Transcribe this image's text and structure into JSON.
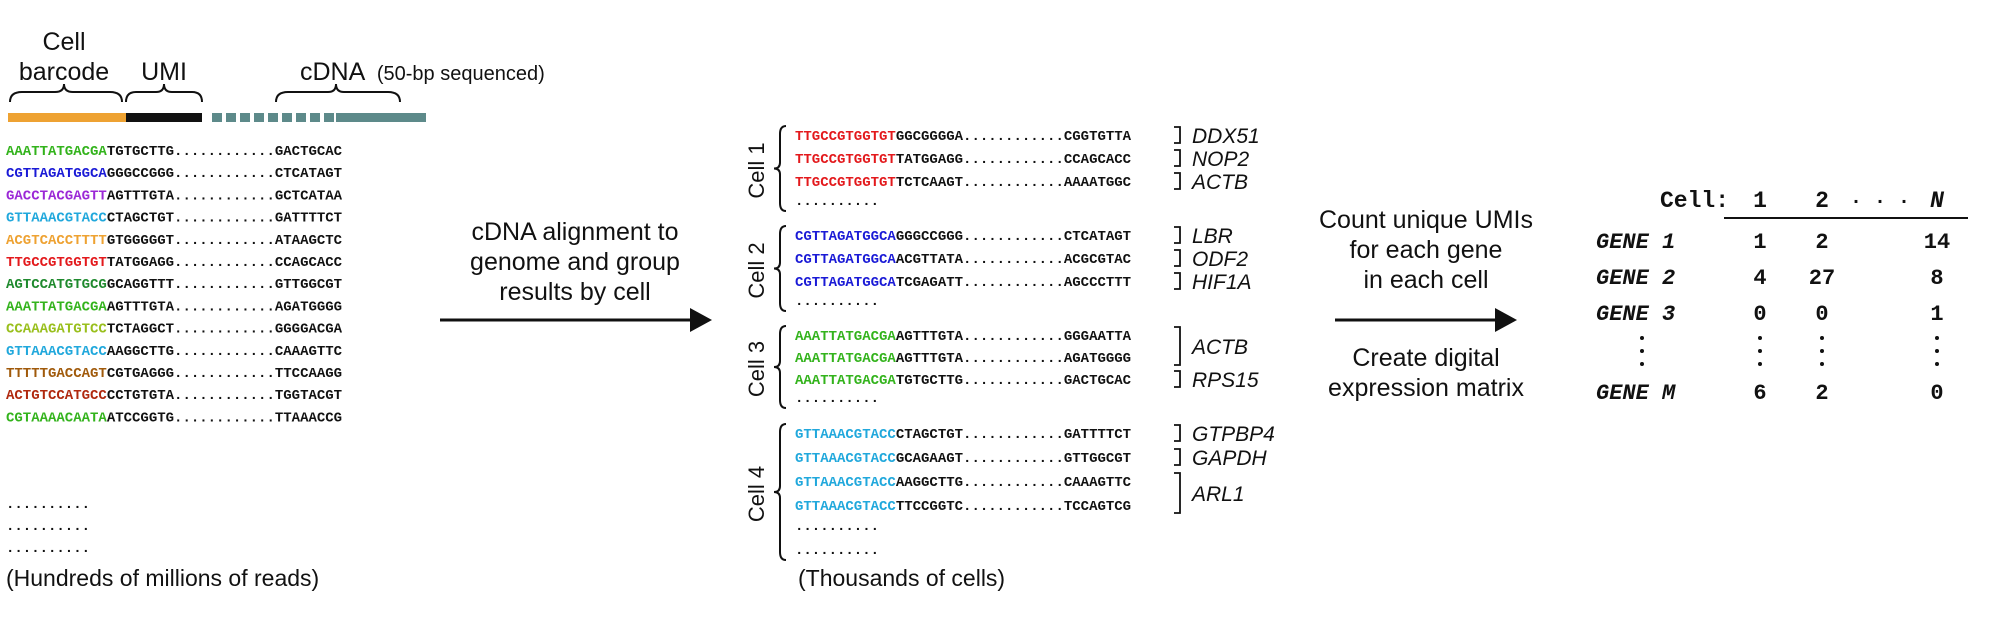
{
  "colors": {
    "green": "#33b31c",
    "blue": "#1a1ad6",
    "purple": "#9b28d6",
    "cyan": "#21a8dc",
    "orange": "#eea232",
    "red": "#e3191c",
    "darkgreen": "#1f8a2e",
    "yellowgreen": "#99bf1c",
    "brown": "#a05a0b",
    "darkred": "#b0290f",
    "black": "#111111",
    "cdna_bar": "#5d8a8a"
  },
  "read_structure": {
    "cell_barcode_label_line1": "Cell",
    "cell_barcode_label_line2": "barcode",
    "umi_label": "UMI",
    "cdna_label": "cDNA",
    "cdna_note": "(50-bp sequenced)"
  },
  "reads": [
    {
      "barcode": "AAATTATGACGA",
      "color": "green",
      "umi": "TGTGCTTG",
      "dots": "............",
      "cdna": "GACTGCAC"
    },
    {
      "barcode": "CGTTAGATGGCA",
      "color": "blue",
      "umi": "GGGCCGGG",
      "dots": "............",
      "cdna": "CTCATAGT"
    },
    {
      "barcode": "GACCTACGAGTT",
      "color": "purple",
      "umi": "AGTTTGTA",
      "dots": "............",
      "cdna": "GCTCATAA"
    },
    {
      "barcode": "GTTAAACGTACC",
      "color": "cyan",
      "umi": "CTAGCTGT",
      "dots": "............",
      "cdna": "GATTTTCT"
    },
    {
      "barcode": "ACGTCACCTTTT",
      "color": "orange",
      "umi": "GTGGGGGT",
      "dots": "............",
      "cdna": "ATAAGCTC"
    },
    {
      "barcode": "TTGCCGTGGTGT",
      "color": "red",
      "umi": "TATGGAGG",
      "dots": "............",
      "cdna": "CCAGCACC"
    },
    {
      "barcode": "AGTCCATGTGCG",
      "color": "darkgreen",
      "umi": "GCAGGTTT",
      "dots": "............",
      "cdna": "GTTGGCGT"
    },
    {
      "barcode": "AAATTATGACGA",
      "color": "green",
      "umi": "AGTTTGTA",
      "dots": "............",
      "cdna": "AGATGGGG"
    },
    {
      "barcode": "CCAAAGATGTCC",
      "color": "yellowgreen",
      "umi": "TCTAGGCT",
      "dots": "............",
      "cdna": "GGGGACGA"
    },
    {
      "barcode": "GTTAAACGTACC",
      "color": "cyan",
      "umi": "AAGGCTTG",
      "dots": "............",
      "cdna": "CAAAGTTC"
    },
    {
      "barcode": "TTTTTGACCAGT",
      "color": "brown",
      "umi": "CGTGAGGG",
      "dots": "............",
      "cdna": "TTCCAAGG"
    },
    {
      "barcode": "ACTGTCCATGCC",
      "color": "darkred",
      "umi": "CCTGTGTA",
      "dots": "............",
      "cdna": "TGGTACGT"
    },
    {
      "barcode": "CGTAAAACAATA",
      "color": "green",
      "umi": "ATCCGGTG",
      "dots": "............",
      "cdna": "TTAAACCG"
    }
  ],
  "reads_ellipsis": [
    "..........",
    "..........",
    ".........."
  ],
  "reads_caption": "(Hundreds of millions of reads)",
  "step1_text": [
    "cDNA alignment to",
    "genome and group",
    "results by cell"
  ],
  "cells": [
    {
      "label": "Cell 1",
      "reads": [
        {
          "barcode": "TTGCCGTGGTGT",
          "color": "red",
          "umi": "GGCGGGGA",
          "dots": "............",
          "cdna": "CGGTGTTA"
        },
        {
          "barcode": "TTGCCGTGGTGT",
          "color": "red",
          "umi": "TATGGAGG",
          "dots": "............",
          "cdna": "CCAGCACC"
        },
        {
          "barcode": "TTGCCGTGGTGT",
          "color": "red",
          "umi": "TCTCAAGT",
          "dots": "............",
          "cdna": "AAAATGGC"
        }
      ],
      "genes": [
        {
          "name": "DDX51",
          "span": 1
        },
        {
          "name": "NOP2",
          "span": 1
        },
        {
          "name": "ACTB",
          "span": 1
        }
      ]
    },
    {
      "label": "Cell 2",
      "reads": [
        {
          "barcode": "CGTTAGATGGCA",
          "color": "blue",
          "umi": "GGGCCGGG",
          "dots": "............",
          "cdna": "CTCATAGT"
        },
        {
          "barcode": "CGTTAGATGGCA",
          "color": "blue",
          "umi": "ACGTTATA",
          "dots": "............",
          "cdna": "ACGCGTAC"
        },
        {
          "barcode": "CGTTAGATGGCA",
          "color": "blue",
          "umi": "TCGAGATT",
          "dots": "............",
          "cdna": "AGCCCTTT"
        }
      ],
      "genes": [
        {
          "name": "LBR",
          "span": 1
        },
        {
          "name": "ODF2",
          "span": 1
        },
        {
          "name": "HIF1A",
          "span": 1
        }
      ]
    },
    {
      "label": "Cell 3",
      "reads": [
        {
          "barcode": "AAATTATGACGA",
          "color": "green",
          "umi": "AGTTTGTA",
          "dots": "............",
          "cdna": "GGGAATTA"
        },
        {
          "barcode": "AAATTATGACGA",
          "color": "green",
          "umi": "AGTTTGTA",
          "dots": "............",
          "cdna": "AGATGGGG"
        },
        {
          "barcode": "AAATTATGACGA",
          "color": "green",
          "umi": "TGTGCTTG",
          "dots": "............",
          "cdna": "GACTGCAC"
        }
      ],
      "genes": [
        {
          "name": "ACTB",
          "span": 2
        },
        {
          "name": "RPS15",
          "span": 1
        }
      ]
    },
    {
      "label": "Cell 4",
      "reads": [
        {
          "barcode": "GTTAAACGTACC",
          "color": "cyan",
          "umi": "CTAGCTGT",
          "dots": "............",
          "cdna": "GATTTTCT"
        },
        {
          "barcode": "GTTAAACGTACC",
          "color": "cyan",
          "umi": "GCAGAAGT",
          "dots": "............",
          "cdna": "GTTGGCGT"
        },
        {
          "barcode": "GTTAAACGTACC",
          "color": "cyan",
          "umi": "AAGGCTTG",
          "dots": "............",
          "cdna": "CAAAGTTC"
        },
        {
          "barcode": "GTTAAACGTACC",
          "color": "cyan",
          "umi": "TTCCGGTC",
          "dots": "............",
          "cdna": "TCCAGTCG"
        }
      ],
      "genes": [
        {
          "name": "GTPBP4",
          "span": 1
        },
        {
          "name": "GAPDH",
          "span": 1
        },
        {
          "name": "ARL1",
          "span": 2
        }
      ]
    }
  ],
  "cell_read_ellipsis": "..........",
  "cells_caption": "(Thousands of cells)",
  "step2_text_top": [
    "Count unique UMIs",
    "for each gene",
    "in each cell"
  ],
  "step2_text_bottom": [
    "Create digital",
    "expression matrix"
  ],
  "matrix": {
    "corner_label": "Cell:",
    "columns": [
      "1",
      "2",
      "· · ·",
      "N"
    ],
    "rows": [
      {
        "gene": "GENE 1",
        "values": [
          "1",
          "2",
          "14"
        ]
      },
      {
        "gene": "GENE 2",
        "values": [
          "4",
          "27",
          "8"
        ]
      },
      {
        "gene": "GENE 3",
        "values": [
          "0",
          "0",
          "1"
        ]
      },
      {
        "gene": "GENE M",
        "values": [
          "6",
          "2",
          "0"
        ]
      }
    ]
  }
}
